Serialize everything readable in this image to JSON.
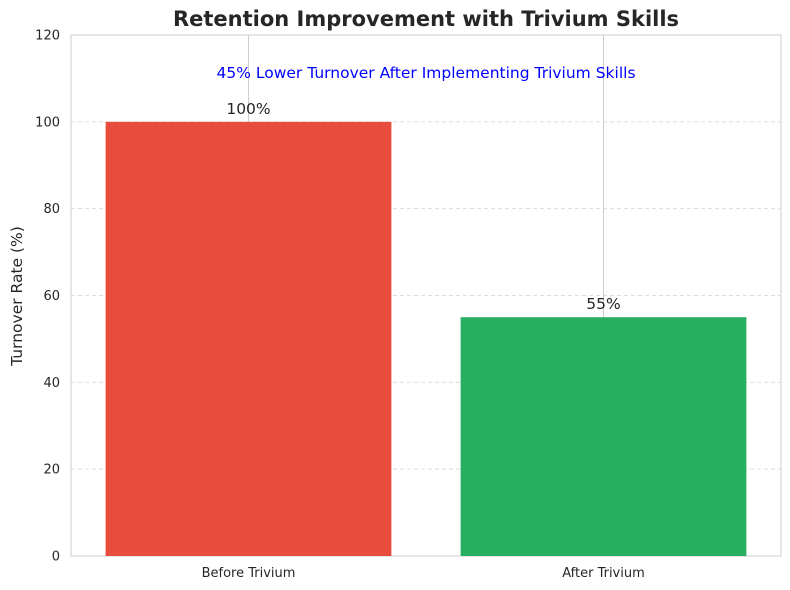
{
  "chart_data": {
    "type": "bar",
    "title": "Retention Improvement with Trivium Skills",
    "xlabel": "",
    "ylabel": "Turnover Rate (%)",
    "categories": [
      "Before Trivium",
      "After Trivium"
    ],
    "values": [
      100,
      55
    ],
    "data_labels": [
      "100%",
      "55%"
    ],
    "bar_colors": [
      "#e74c3c",
      "#27ae60"
    ],
    "annotation": "45% Lower Turnover After Implementing Trivium Skills",
    "annotation_color": "#0000ff",
    "ylim": [
      0,
      120
    ],
    "yticks": [
      0,
      20,
      40,
      60,
      80,
      100,
      120
    ],
    "grid": true
  }
}
